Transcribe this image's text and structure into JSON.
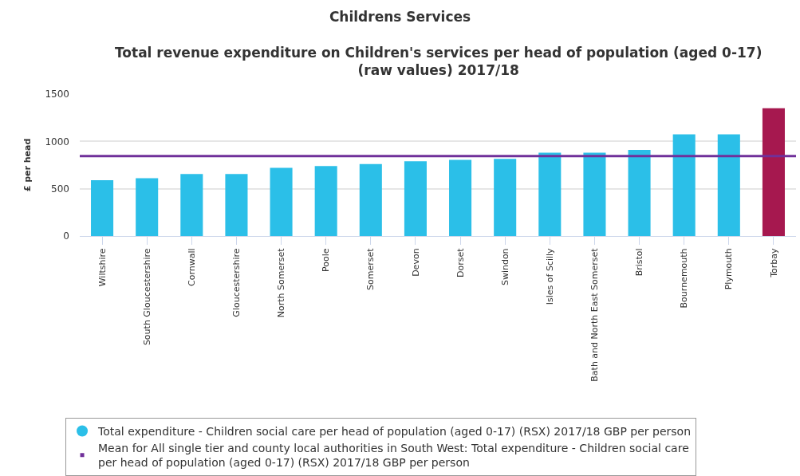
{
  "chart_data": {
    "type": "bar",
    "title": "Childrens Services",
    "subtitle": "Total revenue expenditure on Children's services per head of population (aged 0-17) (raw values) 2017/18",
    "ylabel": "£ per head",
    "categories": [
      "Wiltshire",
      "South Gloucestershire",
      "Cornwall",
      "Gloucestershire",
      "North Somerset",
      "Poole",
      "Somerset",
      "Devon",
      "Dorset",
      "Swindon",
      "Isles of Scilly",
      "Bath and North East Somerset",
      "Bristol",
      "Bournemouth",
      "Plymouth",
      "Torbay"
    ],
    "series": [
      {
        "name": "Total expenditure - Children social care per head of population (aged 0-17) (RSX) 2017/18 GBP per person",
        "color": "#2bbfe8",
        "colors": [
          "#2bbfe8",
          "#2bbfe8",
          "#2bbfe8",
          "#2bbfe8",
          "#2bbfe8",
          "#2bbfe8",
          "#2bbfe8",
          "#2bbfe8",
          "#2bbfe8",
          "#2bbfe8",
          "#2bbfe8",
          "#2bbfe8",
          "#2bbfe8",
          "#2bbfe8",
          "#2bbfe8",
          "#a6184f"
        ],
        "values": [
          590,
          610,
          655,
          655,
          720,
          740,
          760,
          790,
          805,
          815,
          880,
          880,
          910,
          1075,
          1075,
          1350
        ]
      }
    ],
    "ref_lines": [
      {
        "axis": "y",
        "value": 845,
        "label": "Mean for All single tier and county local authorities in South West: Total expenditure - Children social care per head of population (aged 0-17) (RSX) 2017/18 GBP per person",
        "color": "#70309a"
      }
    ],
    "ylim": [
      0,
      1500
    ],
    "yticks": [
      0,
      500,
      1000,
      1500
    ],
    "grid": "y",
    "legend": "bottom"
  }
}
